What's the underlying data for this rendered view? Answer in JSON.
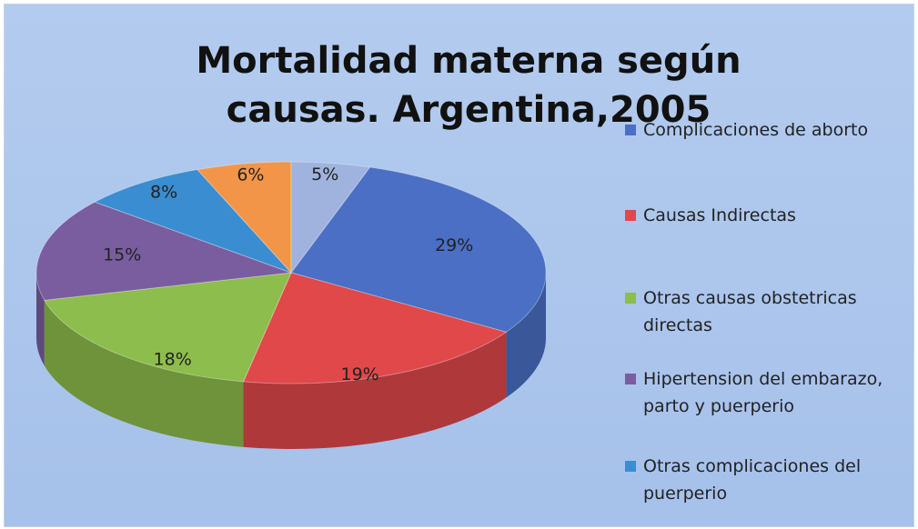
{
  "chart_data": {
    "type": "pie",
    "title": "Mortalidad materna según causas. Argentina,2005",
    "categories": [
      "Complicaciones de aborto",
      "Causas Indirectas",
      "Otras causas obstetricas directas",
      "Hipertension del embarazo, parto y puerperio",
      "Otras complicaciones del puerperio",
      null,
      null
    ],
    "values": [
      29,
      19,
      18,
      15,
      8,
      6,
      5
    ],
    "value_labels": [
      "29%",
      "19%",
      "18%",
      "15%",
      "8%",
      "6%",
      "5%"
    ],
    "colors": [
      "#4a6fc4",
      "#e0484a",
      "#8dbd4c",
      "#7a5d9e",
      "#3a8dd0",
      "#f39548",
      "#9fb3de"
    ],
    "legend": "right"
  }
}
